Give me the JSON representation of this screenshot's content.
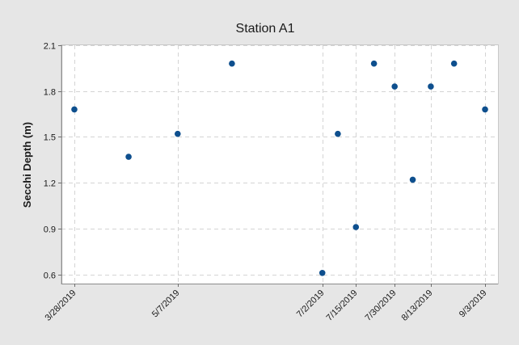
{
  "chart_data": {
    "type": "scatter",
    "title": "Station A1",
    "xlabel": "",
    "ylabel": "Secchi Depth (m)",
    "ylim": [
      0.54,
      2.1
    ],
    "xlim": [
      "2019-03-23",
      "2019-09-08"
    ],
    "yticks": [
      0.6,
      0.9,
      1.2,
      1.5,
      1.8,
      2.1
    ],
    "ytick_labels": [
      "0.6",
      "0.9",
      "1.2",
      "1.5",
      "1.8",
      "2.1"
    ],
    "xticks": [
      "2019-03-28",
      "2019-05-07",
      "2019-07-02",
      "2019-07-15",
      "2019-07-30",
      "2019-08-13",
      "2019-09-03"
    ],
    "xtick_labels": [
      "3/28/2019",
      "5/7/2019",
      "7/2/2019",
      "7/15/2019",
      "7/30/2019",
      "8/13/2019",
      "9/3/2019"
    ],
    "grid": true,
    "marker_color": "#0e4f8e",
    "background_color": "#e6e6e6",
    "points": [
      {
        "x": "2019-03-28",
        "y": 1.68
      },
      {
        "x": "2019-04-18",
        "y": 1.37
      },
      {
        "x": "2019-05-07",
        "y": 1.52
      },
      {
        "x": "2019-05-28",
        "y": 1.98
      },
      {
        "x": "2019-07-02",
        "y": 0.61
      },
      {
        "x": "2019-07-08",
        "y": 1.52
      },
      {
        "x": "2019-07-15",
        "y": 0.91
      },
      {
        "x": "2019-07-22",
        "y": 1.98
      },
      {
        "x": "2019-07-30",
        "y": 1.83
      },
      {
        "x": "2019-08-06",
        "y": 1.22
      },
      {
        "x": "2019-08-13",
        "y": 1.83
      },
      {
        "x": "2019-08-22",
        "y": 1.98
      },
      {
        "x": "2019-09-03",
        "y": 1.68
      }
    ]
  }
}
